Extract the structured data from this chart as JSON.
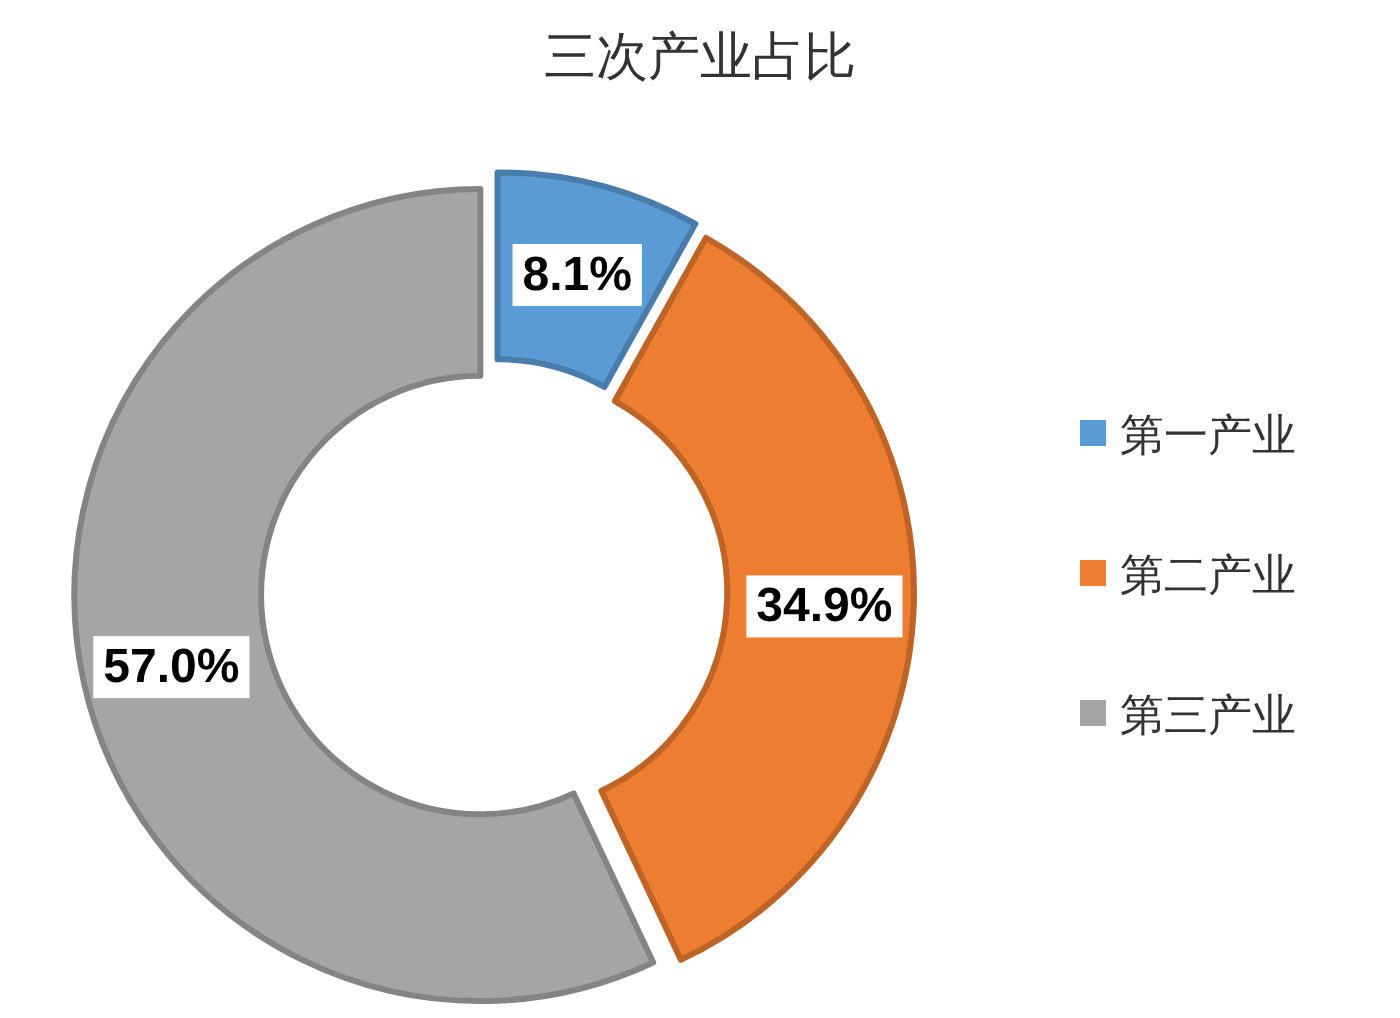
{
  "chart_data": {
    "type": "donut",
    "title": "三次产业占比",
    "categories": [
      "第一产业",
      "第二产业",
      "第三产业"
    ],
    "values": [
      8.1,
      34.9,
      57.0
    ],
    "colors": [
      "#5b9bd5",
      "#ed7d31",
      "#a5a5a5"
    ],
    "value_labels": [
      "8.1%",
      "34.9%",
      "57.0%"
    ],
    "legend": "right"
  }
}
